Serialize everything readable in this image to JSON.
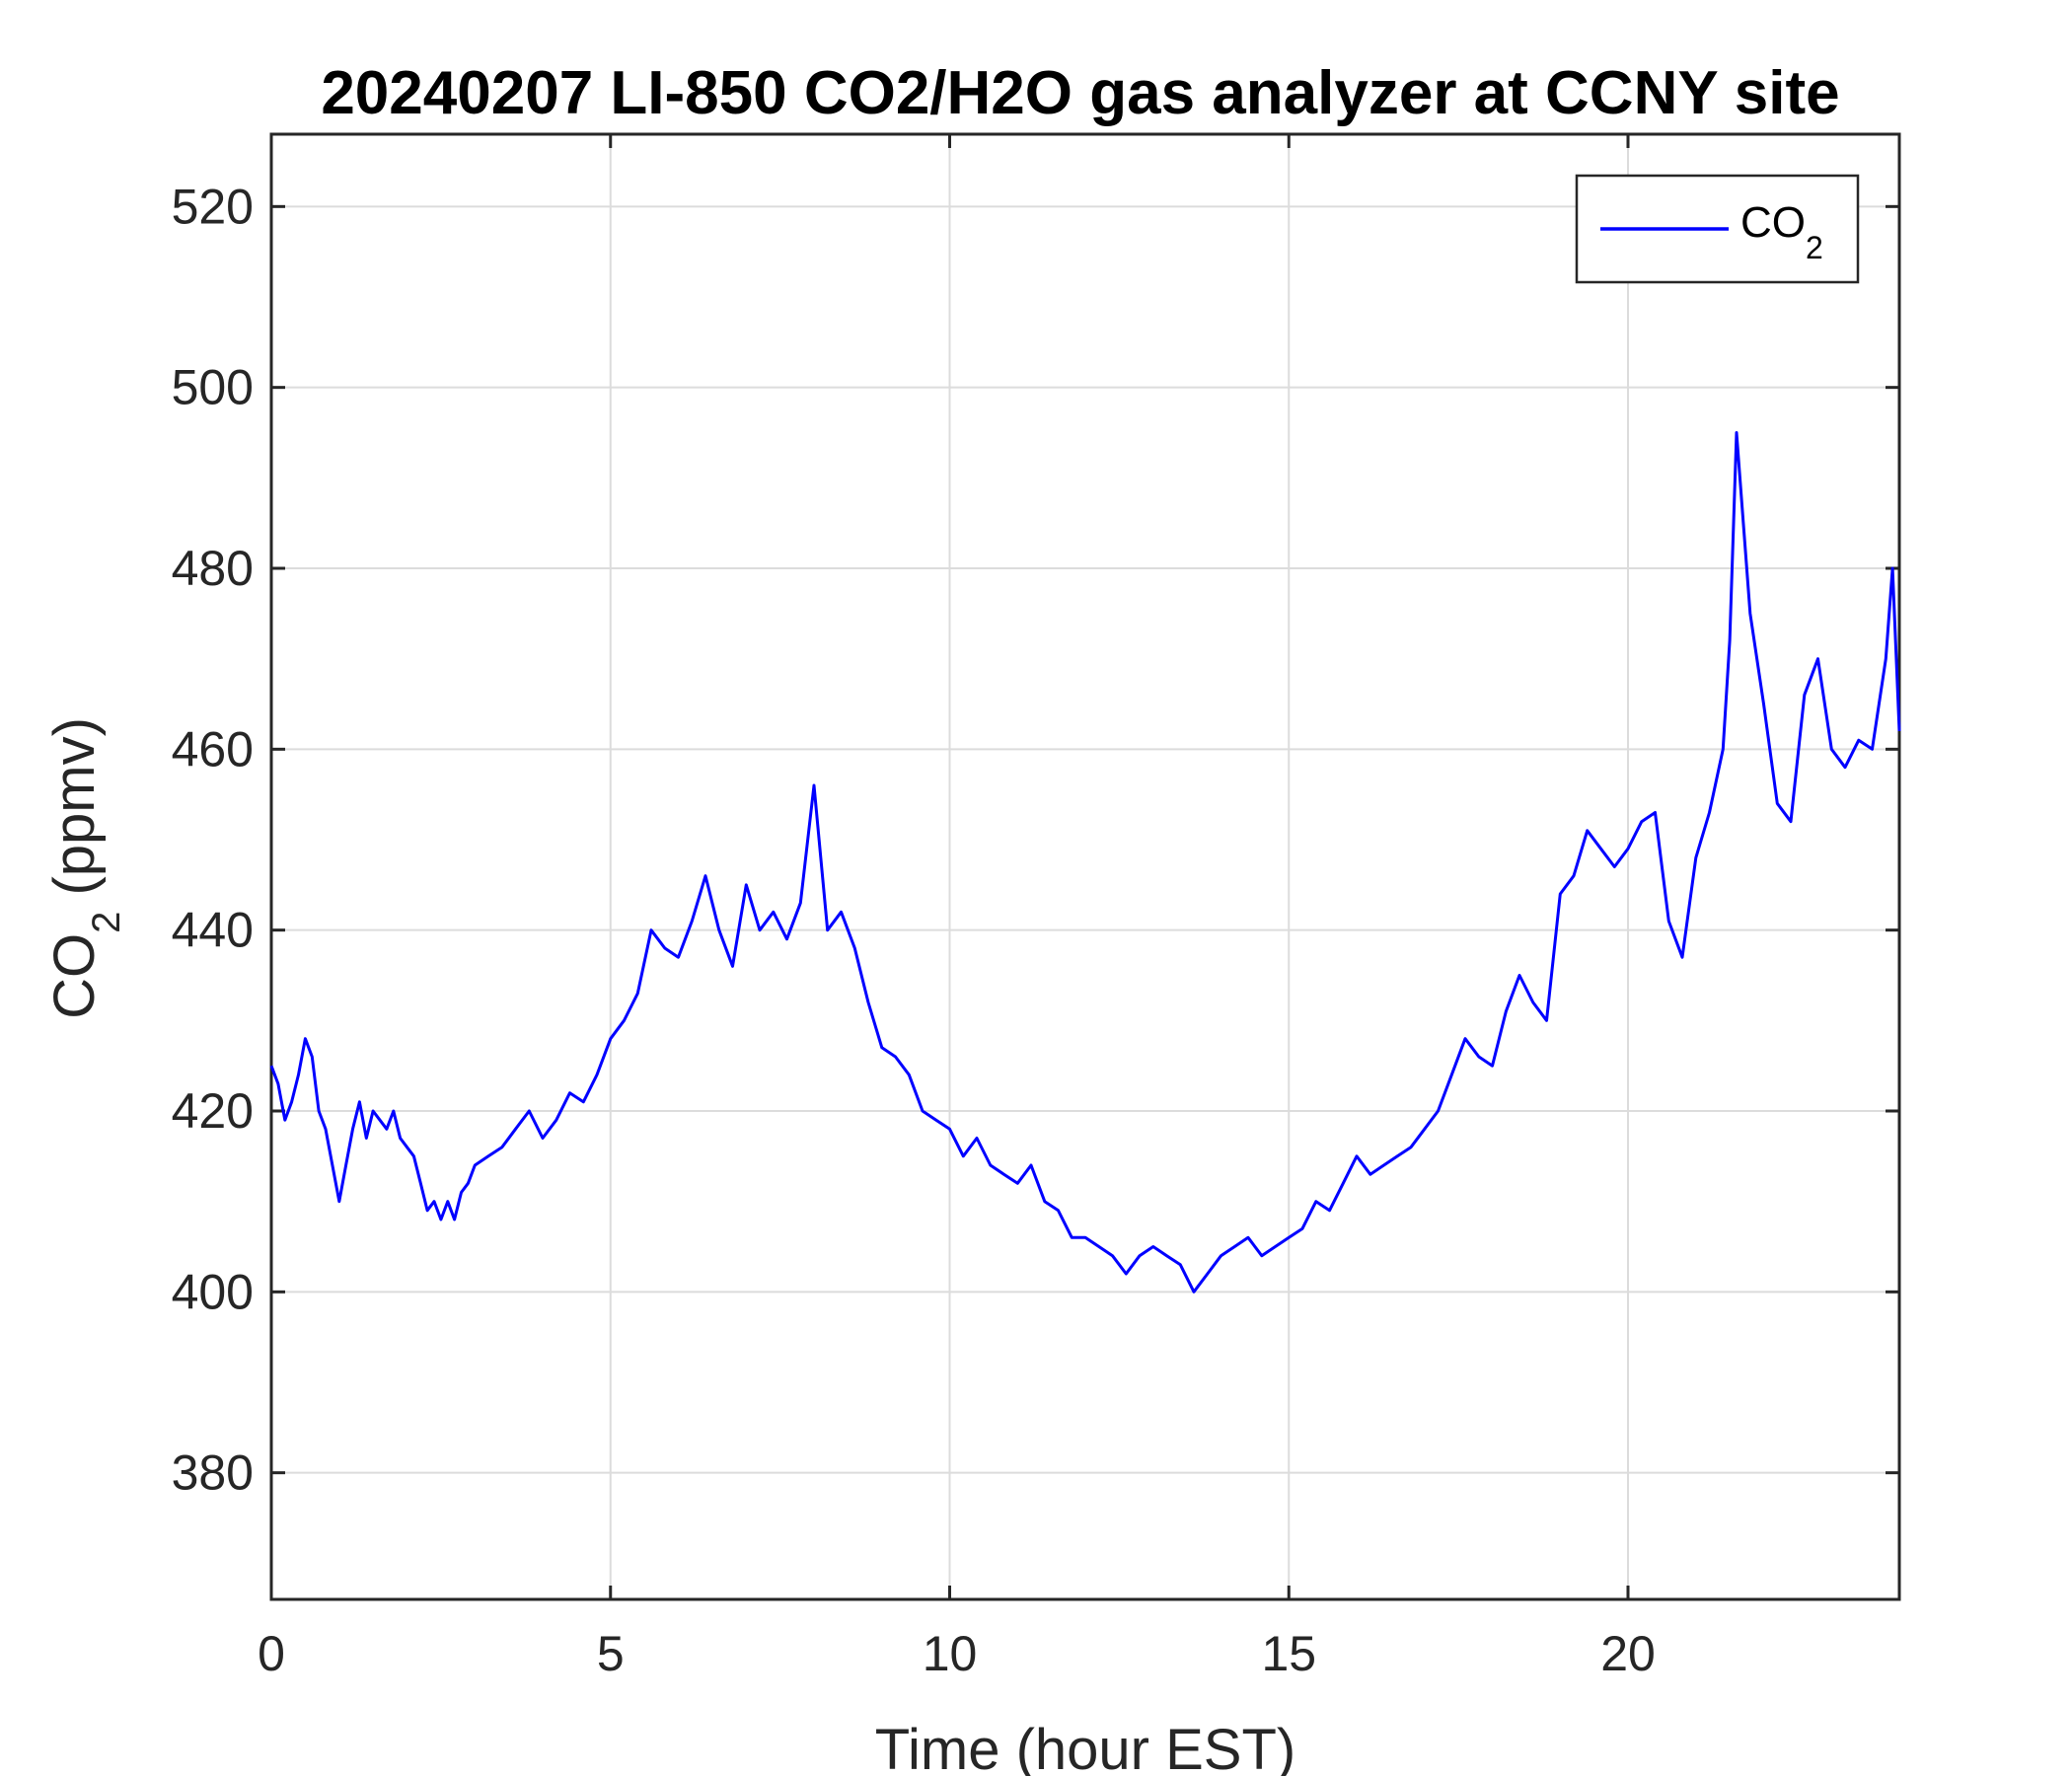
{
  "chart_data": {
    "type": "line",
    "title": "20240207 LI-850 CO2/H2O gas analyzer at CCNY site",
    "xlabel": "Time (hour EST)",
    "ylabel": {
      "base": "CO",
      "sub": "2",
      "rest": " (ppmv)"
    },
    "xlim": [
      0,
      24
    ],
    "ylim": [
      366,
      528
    ],
    "xticks": [
      "0",
      "5",
      "10",
      "15",
      "20"
    ],
    "xtick_values": [
      0,
      5,
      10,
      15,
      20
    ],
    "yticks": [
      "380",
      "400",
      "420",
      "440",
      "460",
      "480",
      "500",
      "520"
    ],
    "ytick_values": [
      380,
      400,
      420,
      440,
      460,
      480,
      500,
      520
    ],
    "grid": true,
    "legend": {
      "position": "top-right"
    },
    "series": [
      {
        "name": {
          "base": "CO",
          "sub": "2"
        },
        "color": "#0000ff",
        "x": [
          0,
          0.1,
          0.2,
          0.3,
          0.4,
          0.5,
          0.6,
          0.7,
          0.8,
          0.9,
          1.0,
          1.1,
          1.2,
          1.3,
          1.4,
          1.5,
          1.6,
          1.7,
          1.8,
          1.9,
          2.0,
          2.1,
          2.2,
          2.3,
          2.4,
          2.5,
          2.6,
          2.7,
          2.8,
          2.9,
          3.0,
          3.2,
          3.4,
          3.6,
          3.8,
          4.0,
          4.2,
          4.4,
          4.6,
          4.8,
          5.0,
          5.2,
          5.4,
          5.6,
          5.8,
          6.0,
          6.2,
          6.4,
          6.6,
          6.8,
          7.0,
          7.2,
          7.4,
          7.6,
          7.8,
          8.0,
          8.2,
          8.4,
          8.6,
          8.8,
          9.0,
          9.2,
          9.4,
          9.6,
          9.8,
          10.0,
          10.2,
          10.4,
          10.6,
          10.8,
          11.0,
          11.2,
          11.4,
          11.6,
          11.8,
          12.0,
          12.2,
          12.4,
          12.6,
          12.8,
          13.0,
          13.2,
          13.4,
          13.6,
          13.8,
          14.0,
          14.2,
          14.4,
          14.6,
          14.8,
          15.0,
          15.2,
          15.4,
          15.6,
          15.8,
          16.0,
          16.2,
          16.4,
          16.6,
          16.8,
          17.0,
          17.2,
          17.4,
          17.6,
          17.8,
          18.0,
          18.2,
          18.4,
          18.6,
          18.8,
          19.0,
          19.2,
          19.4,
          19.6,
          19.8,
          20.0,
          20.2,
          20.4,
          20.6,
          20.8,
          21.0,
          21.2,
          21.4,
          21.5,
          21.6,
          21.7,
          21.8,
          22.0,
          22.2,
          22.4,
          22.6,
          22.8,
          23.0,
          23.2,
          23.4,
          23.6,
          23.8,
          23.9,
          24.0
        ],
        "y": [
          425,
          423,
          419,
          421,
          424,
          428,
          426,
          420,
          418,
          414,
          410,
          414,
          418,
          421,
          417,
          420,
          419,
          418,
          420,
          417,
          416,
          415,
          412,
          409,
          410,
          408,
          410,
          408,
          411,
          412,
          414,
          415,
          416,
          418,
          420,
          417,
          419,
          422,
          421,
          424,
          428,
          430,
          433,
          440,
          438,
          437,
          441,
          446,
          440,
          436,
          445,
          440,
          442,
          439,
          443,
          456,
          440,
          442,
          438,
          432,
          427,
          426,
          424,
          420,
          419,
          418,
          415,
          417,
          414,
          413,
          412,
          414,
          410,
          409,
          406,
          406,
          405,
          404,
          402,
          404,
          405,
          404,
          403,
          400,
          402,
          404,
          405,
          406,
          404,
          405,
          406,
          407,
          410,
          409,
          412,
          415,
          413,
          414,
          415,
          416,
          418,
          420,
          424,
          428,
          426,
          425,
          431,
          435,
          432,
          430,
          444,
          446,
          451,
          449,
          447,
          449,
          452,
          453,
          441,
          437,
          448,
          453,
          460,
          472,
          495,
          485,
          475,
          465,
          454,
          452,
          466,
          470,
          460,
          458,
          461,
          460,
          470,
          480,
          462
        ]
      }
    ]
  }
}
